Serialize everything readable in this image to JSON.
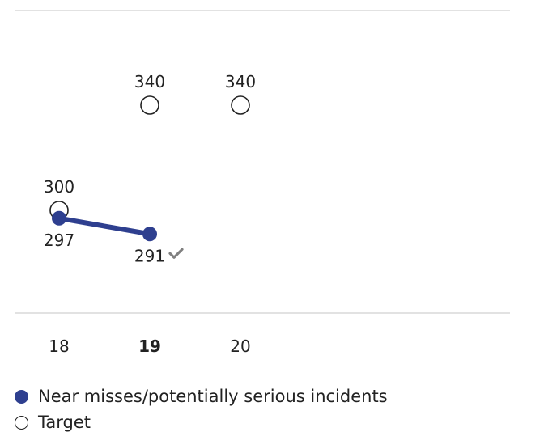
{
  "chart_data": {
    "type": "line",
    "title": "",
    "xlabel": "",
    "ylabel": "",
    "categories": [
      "18",
      "19",
      "20"
    ],
    "highlighted_category": "19",
    "ylim": [
      200,
      380
    ],
    "grid": false,
    "legend_position": "bottom-left",
    "series": [
      {
        "name": "Near misses/potentially serious incidents",
        "style": "filled-marker-line",
        "color": "#2e3f8f",
        "values": [
          297,
          291,
          null
        ],
        "labels": [
          "297",
          "291",
          ""
        ],
        "target_met": [
          false,
          true,
          false
        ]
      },
      {
        "name": "Target",
        "style": "hollow-marker",
        "color": "#222222",
        "values": [
          300,
          340,
          340
        ],
        "labels": [
          "300",
          "340",
          "340"
        ]
      }
    ]
  },
  "colors": {
    "series": "#2e3f8f",
    "target": "#222222",
    "rule": "#d0d0d0",
    "check": "#808080"
  },
  "icons": {
    "target_met": "checkmark-icon"
  }
}
